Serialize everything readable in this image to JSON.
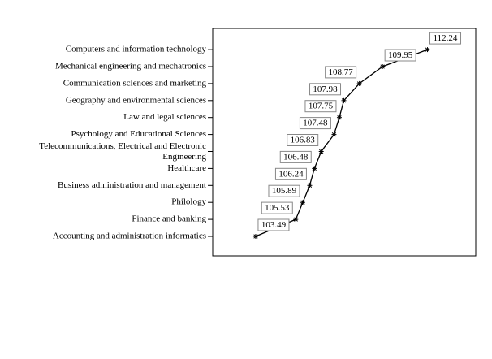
{
  "chart_data": {
    "type": "line",
    "categories": [
      "Accounting and administration informatics",
      "Finance and banking",
      "Philology",
      "Business administration and management",
      "Healthcare",
      "Telecommunications, Electrical and Electronic\nEngineering",
      "Psychology and Educational Sciences",
      "Law and legal sciences",
      "Geography and environmental sciences",
      "Communication sciences and marketing",
      "Mechanical engineering and mechatronics",
      "Computers and information technology"
    ],
    "values": [
      103.49,
      105.53,
      105.89,
      106.24,
      106.48,
      106.83,
      107.48,
      107.75,
      107.98,
      108.77,
      109.95,
      112.24
    ],
    "color": "#000000",
    "xlim": [
      101.3,
      114.7
    ]
  }
}
